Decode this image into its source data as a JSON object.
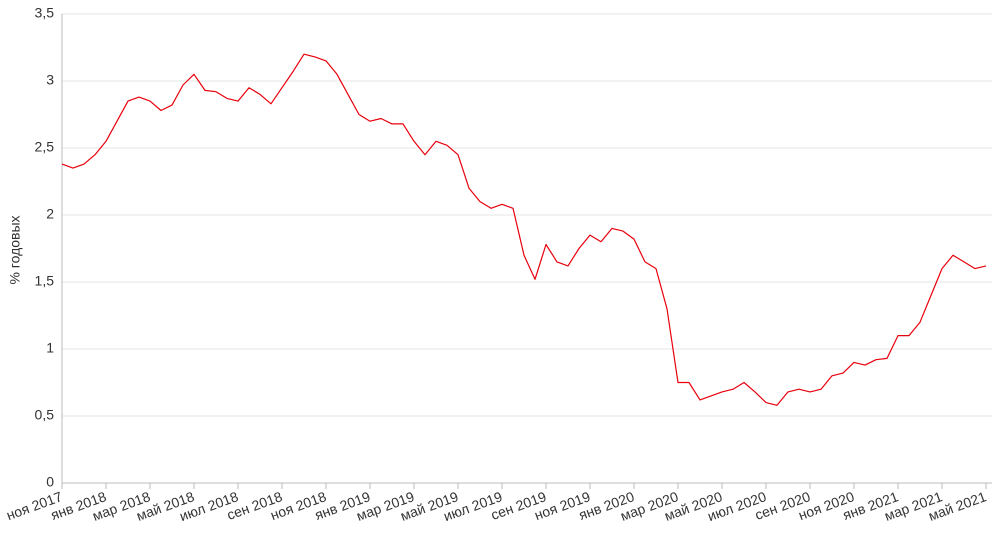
{
  "chart_data": {
    "type": "line",
    "y_label": "% годовых",
    "categories": [
      "ноя 2017",
      null,
      null,
      null,
      "янв 2018",
      null,
      null,
      null,
      "мар 2018",
      null,
      null,
      null,
      "май 2018",
      null,
      null,
      null,
      "июл 2018",
      null,
      null,
      null,
      "сен 2018",
      null,
      null,
      null,
      "ноя 2018",
      null,
      null,
      null,
      "янв 2019",
      null,
      null,
      null,
      "мар 2019",
      null,
      null,
      null,
      "май 2019",
      null,
      null,
      null,
      "июл 2019",
      null,
      null,
      null,
      "сен 2019",
      null,
      null,
      null,
      "ноя 2019",
      null,
      null,
      null,
      "янв 2020",
      null,
      null,
      null,
      "мар 2020",
      null,
      null,
      null,
      "май 2020",
      null,
      null,
      null,
      "июл 2020",
      null,
      null,
      null,
      "сен 2020",
      null,
      null,
      null,
      "ноя 2020",
      null,
      null,
      null,
      "янв 2021",
      null,
      null,
      null,
      "мар 2021",
      null,
      null,
      null,
      "май 2021"
    ],
    "values": [
      2.38,
      2.35,
      2.38,
      2.45,
      2.55,
      2.7,
      2.85,
      2.88,
      2.85,
      2.78,
      2.82,
      2.97,
      3.05,
      2.93,
      2.92,
      2.87,
      2.85,
      2.95,
      2.9,
      2.83,
      2.95,
      3.07,
      3.2,
      3.18,
      3.15,
      3.05,
      2.9,
      2.75,
      2.7,
      2.72,
      2.68,
      2.68,
      2.55,
      2.45,
      2.55,
      2.52,
      2.45,
      2.2,
      2.1,
      2.05,
      2.08,
      2.05,
      1.7,
      1.52,
      1.78,
      1.65,
      1.62,
      1.75,
      1.85,
      1.8,
      1.9,
      1.88,
      1.82,
      1.65,
      1.6,
      1.3,
      0.75,
      0.75,
      0.62,
      0.65,
      0.68,
      0.7,
      0.75,
      0.68,
      0.6,
      0.58,
      0.68,
      0.7,
      0.68,
      0.7,
      0.8,
      0.82,
      0.9,
      0.88,
      0.92,
      0.93,
      1.1,
      1.1,
      1.2,
      1.4,
      1.6,
      1.7,
      1.65,
      1.6,
      1.62
    ],
    "color": "#e8000b",
    "ylim": [
      0,
      3.5
    ],
    "yticks": [
      0,
      {
        "value": 0.5,
        "label": "0,5"
      },
      1,
      {
        "value": 1.5,
        "label": "1,5"
      },
      2,
      {
        "value": 2.5,
        "label": "2,5"
      },
      3,
      {
        "value": 3.5,
        "label": "3,5"
      }
    ],
    "grid": true
  }
}
